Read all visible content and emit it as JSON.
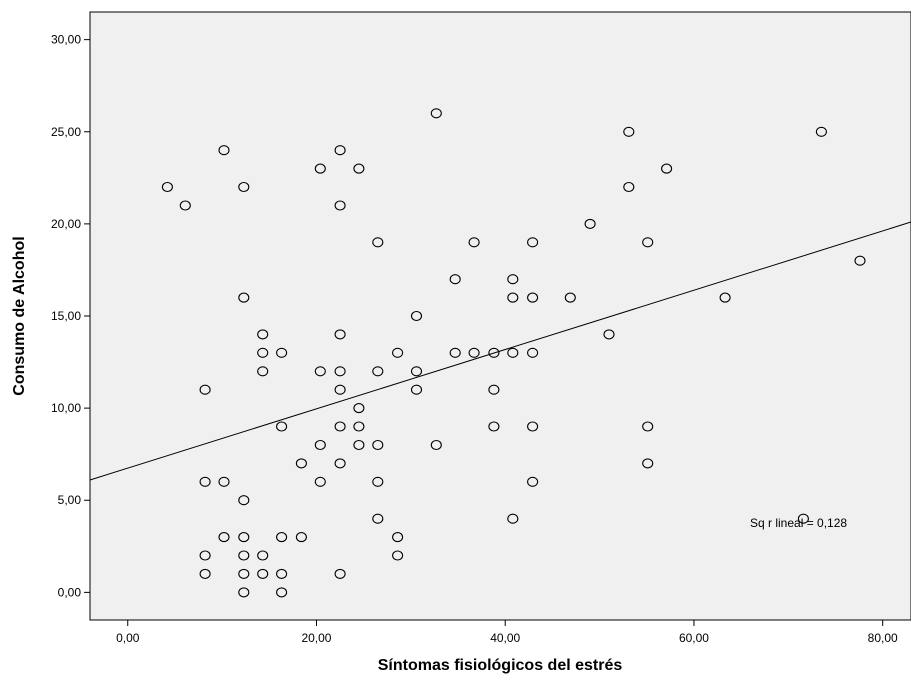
{
  "chart_data": {
    "type": "scatter",
    "title": "",
    "xlabel": "Síntomas fisiológicos del estrés",
    "ylabel": "Consumo de Alcohol",
    "xlim": [
      -4,
      83
    ],
    "ylim": [
      -1.5,
      31.5
    ],
    "x_ticks": [
      0,
      20,
      40,
      60,
      80
    ],
    "x_tick_labels": [
      "0,00",
      "20,00",
      "40,00",
      "60,00",
      "80,00"
    ],
    "y_ticks": [
      0,
      5,
      10,
      15,
      20,
      25,
      30
    ],
    "y_tick_labels": [
      "0,00",
      "5,00",
      "10,00",
      "15,00",
      "20,00",
      "25,00",
      "30,00"
    ],
    "grid": false,
    "plot_background": "#f0f0f0",
    "annotation": "Sq r lineal = 0,128",
    "fit_line": {
      "type": "linear",
      "x": [
        -4,
        83
      ],
      "y": [
        6.1,
        20.1
      ]
    },
    "points": [
      [
        4.2,
        22
      ],
      [
        6.1,
        21
      ],
      [
        8.2,
        11
      ],
      [
        8.2,
        6
      ],
      [
        8.2,
        2
      ],
      [
        8.2,
        1
      ],
      [
        10.2,
        24
      ],
      [
        10.2,
        6
      ],
      [
        10.2,
        3
      ],
      [
        12.3,
        22
      ],
      [
        12.3,
        16
      ],
      [
        12.3,
        5
      ],
      [
        12.3,
        3
      ],
      [
        12.3,
        2
      ],
      [
        12.3,
        1
      ],
      [
        12.3,
        0
      ],
      [
        14.3,
        14
      ],
      [
        14.3,
        13
      ],
      [
        14.3,
        12
      ],
      [
        14.3,
        2
      ],
      [
        14.3,
        1
      ],
      [
        16.3,
        13
      ],
      [
        16.3,
        9
      ],
      [
        16.3,
        3
      ],
      [
        16.3,
        1
      ],
      [
        16.3,
        0
      ],
      [
        18.4,
        7
      ],
      [
        18.4,
        3
      ],
      [
        20.4,
        23
      ],
      [
        20.4,
        12
      ],
      [
        20.4,
        8
      ],
      [
        20.4,
        6
      ],
      [
        22.5,
        24
      ],
      [
        22.5,
        21
      ],
      [
        22.5,
        14
      ],
      [
        22.5,
        12
      ],
      [
        22.5,
        11
      ],
      [
        22.5,
        9
      ],
      [
        22.5,
        7
      ],
      [
        22.5,
        1
      ],
      [
        24.5,
        23
      ],
      [
        24.5,
        10
      ],
      [
        24.5,
        9
      ],
      [
        24.5,
        8
      ],
      [
        26.5,
        19
      ],
      [
        26.5,
        12
      ],
      [
        26.5,
        8
      ],
      [
        26.5,
        6
      ],
      [
        26.5,
        4
      ],
      [
        28.6,
        13
      ],
      [
        28.6,
        3
      ],
      [
        28.6,
        2
      ],
      [
        30.6,
        15
      ],
      [
        30.6,
        12
      ],
      [
        30.6,
        11
      ],
      [
        32.7,
        26
      ],
      [
        32.7,
        8
      ],
      [
        34.7,
        17
      ],
      [
        34.7,
        13
      ],
      [
        36.7,
        19
      ],
      [
        36.7,
        13
      ],
      [
        38.8,
        13
      ],
      [
        38.8,
        11
      ],
      [
        38.8,
        9
      ],
      [
        40.8,
        17
      ],
      [
        40.8,
        16
      ],
      [
        40.8,
        13
      ],
      [
        40.8,
        4
      ],
      [
        42.9,
        19
      ],
      [
        42.9,
        16
      ],
      [
        42.9,
        13
      ],
      [
        42.9,
        9
      ],
      [
        42.9,
        6
      ],
      [
        46.9,
        16
      ],
      [
        49.0,
        20
      ],
      [
        51.0,
        14
      ],
      [
        53.1,
        25
      ],
      [
        53.1,
        22
      ],
      [
        55.1,
        19
      ],
      [
        55.1,
        9
      ],
      [
        55.1,
        7
      ],
      [
        57.1,
        23
      ],
      [
        63.3,
        16
      ],
      [
        71.6,
        4
      ],
      [
        73.5,
        25
      ],
      [
        77.6,
        18
      ]
    ]
  }
}
